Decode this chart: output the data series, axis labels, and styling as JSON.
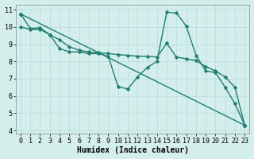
{
  "bg_color": "#d4eeec",
  "grid_color": "#b8dbd8",
  "line_color": "#1e7e72",
  "line_width": 1.0,
  "marker": "D",
  "marker_size": 2.5,
  "xlabel": "Humidex (Indice chaleur)",
  "xlabel_fontsize": 7,
  "tick_fontsize": 6,
  "xlim": [
    -0.5,
    23.5
  ],
  "ylim": [
    3.8,
    11.3
  ],
  "yticks": [
    4,
    5,
    6,
    7,
    8,
    9,
    10,
    11
  ],
  "xticks": [
    0,
    1,
    2,
    3,
    4,
    5,
    6,
    7,
    8,
    9,
    10,
    11,
    12,
    13,
    14,
    15,
    16,
    17,
    18,
    19,
    20,
    21,
    22,
    23
  ],
  "lines": [
    {
      "x": [
        0,
        1,
        2,
        3,
        4,
        5,
        6,
        7,
        8,
        9,
        10,
        11,
        12,
        13,
        14,
        15,
        16,
        17,
        18,
        19,
        20,
        21,
        22,
        23
      ],
      "y": [
        10.75,
        9.9,
        9.95,
        9.55,
        8.75,
        8.55,
        8.55,
        8.45,
        8.45,
        8.3,
        6.55,
        6.4,
        7.1,
        7.65,
        8.0,
        10.85,
        10.8,
        10.05,
        8.35,
        7.45,
        7.35,
        6.5,
        5.55,
        4.3
      ]
    },
    {
      "x": [
        0,
        1,
        2,
        3,
        4,
        5,
        6,
        7,
        8,
        9,
        10,
        11,
        12,
        13,
        14,
        15,
        16,
        17,
        18,
        19,
        20,
        21,
        22,
        23
      ],
      "y": [
        10.0,
        9.85,
        9.85,
        9.55,
        9.25,
        8.85,
        8.65,
        8.55,
        8.5,
        8.45,
        8.4,
        8.35,
        8.3,
        8.3,
        8.25,
        9.05,
        8.25,
        8.15,
        8.05,
        7.7,
        7.45,
        7.1,
        6.5,
        4.3
      ]
    },
    {
      "x": [
        0,
        23
      ],
      "y": [
        10.75,
        4.3
      ]
    }
  ]
}
